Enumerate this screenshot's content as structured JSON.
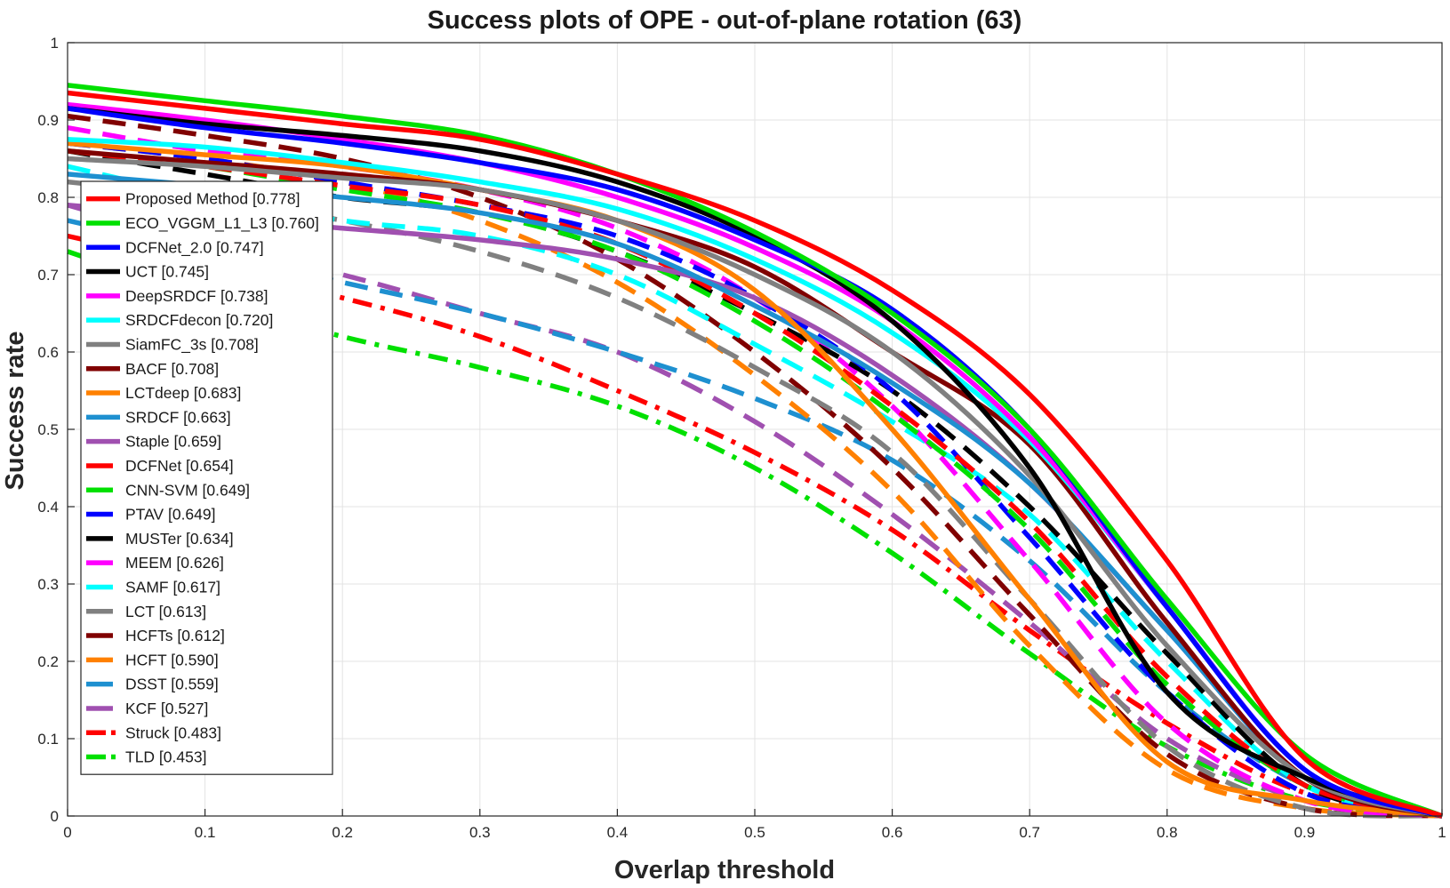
{
  "chart_data": {
    "type": "line",
    "title": "Success plots of OPE - out-of-plane rotation (63)",
    "xlabel": "Overlap threshold",
    "ylabel": "Success rate",
    "xlim": [
      0,
      1
    ],
    "ylim": [
      0,
      1
    ],
    "grid": true,
    "legend_position": "center-left",
    "xticks": [
      "0",
      "0.1",
      "0.2",
      "0.3",
      "0.4",
      "0.5",
      "0.6",
      "0.7",
      "0.8",
      "0.9",
      "1"
    ],
    "yticks": [
      "0",
      "0.1",
      "0.2",
      "0.3",
      "0.4",
      "0.5",
      "0.6",
      "0.7",
      "0.8",
      "0.9",
      "1"
    ],
    "x": [
      0,
      0.1,
      0.2,
      0.3,
      0.4,
      0.5,
      0.6,
      0.7,
      0.8,
      0.9,
      1.0
    ],
    "series": [
      {
        "name": "Proposed Method [0.778]",
        "color": "#ff0000",
        "style": "solid",
        "values": [
          0.935,
          0.915,
          0.895,
          0.875,
          0.83,
          0.77,
          0.68,
          0.545,
          0.33,
          0.075,
          0.0
        ]
      },
      {
        "name": "ECO_VGGM_L1_L3 [0.760]",
        "color": "#00e000",
        "style": "solid",
        "values": [
          0.945,
          0.925,
          0.905,
          0.88,
          0.83,
          0.755,
          0.65,
          0.5,
          0.28,
          0.08,
          0.0
        ]
      },
      {
        "name": "DCFNet_2.0 [0.747]",
        "color": "#0000ff",
        "style": "solid",
        "values": [
          0.915,
          0.89,
          0.87,
          0.845,
          0.81,
          0.745,
          0.655,
          0.5,
          0.27,
          0.06,
          0.0
        ]
      },
      {
        "name": "UCT [0.745]",
        "color": "#000000",
        "style": "solid",
        "values": [
          0.915,
          0.895,
          0.88,
          0.86,
          0.82,
          0.75,
          0.64,
          0.45,
          0.16,
          0.05,
          0.0
        ]
      },
      {
        "name": "DeepSRDCF [0.738]",
        "color": "#ff00ff",
        "style": "solid",
        "values": [
          0.92,
          0.9,
          0.875,
          0.845,
          0.8,
          0.735,
          0.64,
          0.49,
          0.27,
          0.06,
          0.0
        ]
      },
      {
        "name": "SRDCFdecon [0.720]",
        "color": "#00ffff",
        "style": "solid",
        "values": [
          0.875,
          0.865,
          0.845,
          0.82,
          0.785,
          0.72,
          0.625,
          0.485,
          0.27,
          0.06,
          0.0
        ]
      },
      {
        "name": "SiamFC_3s [0.708]",
        "color": "#808080",
        "style": "solid",
        "values": [
          0.85,
          0.84,
          0.825,
          0.81,
          0.77,
          0.7,
          0.6,
          0.44,
          0.22,
          0.05,
          0.0
        ]
      },
      {
        "name": "BACF [0.708]",
        "color": "#800000",
        "style": "solid",
        "values": [
          0.86,
          0.845,
          0.83,
          0.81,
          0.77,
          0.71,
          0.6,
          0.48,
          0.25,
          0.05,
          0.0
        ]
      },
      {
        "name": "LCTdeep [0.683]",
        "color": "#ff8000",
        "style": "solid",
        "values": [
          0.87,
          0.855,
          0.84,
          0.81,
          0.77,
          0.68,
          0.5,
          0.28,
          0.07,
          0.02,
          0.0
        ]
      },
      {
        "name": "SRDCF [0.663]",
        "color": "#1e90d0",
        "style": "solid",
        "values": [
          0.83,
          0.815,
          0.8,
          0.78,
          0.74,
          0.66,
          0.56,
          0.43,
          0.24,
          0.05,
          0.0
        ]
      },
      {
        "name": "Staple [0.659]",
        "color": "#a050b0",
        "style": "solid",
        "values": [
          0.79,
          0.775,
          0.76,
          0.745,
          0.72,
          0.67,
          0.57,
          0.43,
          0.24,
          0.05,
          0.0
        ]
      },
      {
        "name": "DCFNet [0.654]",
        "color": "#ff0000",
        "style": "dashed",
        "values": [
          0.86,
          0.84,
          0.815,
          0.79,
          0.74,
          0.65,
          0.53,
          0.38,
          0.18,
          0.04,
          0.0
        ]
      },
      {
        "name": "CNN-SVM [0.649]",
        "color": "#00e000",
        "style": "dashed",
        "values": [
          0.86,
          0.84,
          0.81,
          0.78,
          0.73,
          0.64,
          0.52,
          0.37,
          0.17,
          0.04,
          0.0
        ]
      },
      {
        "name": "PTAV [0.649]",
        "color": "#0000ff",
        "style": "dashed",
        "values": [
          0.87,
          0.85,
          0.82,
          0.79,
          0.75,
          0.67,
          0.55,
          0.36,
          0.16,
          0.03,
          0.0
        ]
      },
      {
        "name": "MUSTer [0.634]",
        "color": "#000000",
        "style": "dashed",
        "values": [
          0.86,
          0.83,
          0.8,
          0.78,
          0.73,
          0.65,
          0.55,
          0.4,
          0.21,
          0.04,
          0.0
        ]
      },
      {
        "name": "MEEM [0.626]",
        "color": "#ff00ff",
        "style": "dashed",
        "values": [
          0.89,
          0.86,
          0.84,
          0.81,
          0.76,
          0.67,
          0.53,
          0.33,
          0.12,
          0.02,
          0.0
        ]
      },
      {
        "name": "SAMF [0.617]",
        "color": "#00ffff",
        "style": "dashed",
        "values": [
          0.84,
          0.8,
          0.77,
          0.75,
          0.7,
          0.61,
          0.51,
          0.39,
          0.2,
          0.04,
          0.0
        ]
      },
      {
        "name": "LCT [0.613]",
        "color": "#808080",
        "style": "dashed",
        "values": [
          0.82,
          0.8,
          0.77,
          0.73,
          0.67,
          0.58,
          0.47,
          0.28,
          0.09,
          0.01,
          0.0
        ]
      },
      {
        "name": "HCFTs [0.612]",
        "color": "#800000",
        "style": "dashed",
        "values": [
          0.905,
          0.88,
          0.85,
          0.8,
          0.72,
          0.6,
          0.45,
          0.26,
          0.08,
          0.01,
          0.0
        ]
      },
      {
        "name": "HCFT [0.590]",
        "color": "#ff8000",
        "style": "dashed",
        "values": [
          0.87,
          0.85,
          0.82,
          0.77,
          0.69,
          0.57,
          0.42,
          0.22,
          0.06,
          0.01,
          0.0
        ]
      },
      {
        "name": "DSST [0.559]",
        "color": "#1e90d0",
        "style": "dashed",
        "values": [
          0.77,
          0.73,
          0.69,
          0.65,
          0.6,
          0.54,
          0.46,
          0.33,
          0.16,
          0.04,
          0.0
        ]
      },
      {
        "name": "KCF [0.527]",
        "color": "#a050b0",
        "style": "dashed",
        "values": [
          0.79,
          0.74,
          0.7,
          0.65,
          0.6,
          0.51,
          0.39,
          0.25,
          0.1,
          0.02,
          0.0
        ]
      },
      {
        "name": "Struck [0.483]",
        "color": "#ff0000",
        "style": "dashdot",
        "values": [
          0.75,
          0.71,
          0.67,
          0.62,
          0.55,
          0.47,
          0.37,
          0.24,
          0.12,
          0.03,
          0.0
        ]
      },
      {
        "name": "TLD [0.453]",
        "color": "#00e000",
        "style": "dashdot",
        "values": [
          0.73,
          0.67,
          0.62,
          0.58,
          0.53,
          0.45,
          0.34,
          0.21,
          0.09,
          0.02,
          0.0
        ]
      }
    ]
  }
}
